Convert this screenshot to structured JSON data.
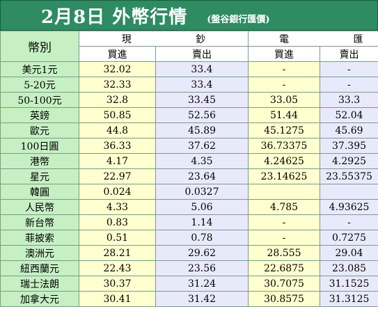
{
  "title": {
    "main": "2月8日 外幣行情",
    "sub": "(盤谷銀行匯價)"
  },
  "headers": {
    "currency": "幣別",
    "cash": "現 鈔",
    "telegraphic": "電 匯",
    "buy": "買進",
    "sell": "賣出"
  },
  "rows": [
    {
      "currency": "美元1元",
      "cash_buy": "32.02",
      "cash_sell": "33.4",
      "tt_buy": "-",
      "tt_sell": "-"
    },
    {
      "currency": "5-20元",
      "cash_buy": "32.33",
      "cash_sell": "33.4",
      "tt_buy": "-",
      "tt_sell": "-"
    },
    {
      "currency": "50-100元",
      "cash_buy": "32.8",
      "cash_sell": "33.45",
      "tt_buy": "33.05",
      "tt_sell": "33.3"
    },
    {
      "currency": "英鎊",
      "cash_buy": "50.85",
      "cash_sell": "52.56",
      "tt_buy": "51.44",
      "tt_sell": "52.04"
    },
    {
      "currency": "歐元",
      "cash_buy": "44.8",
      "cash_sell": "45.89",
      "tt_buy": "45.1275",
      "tt_sell": "45.69"
    },
    {
      "currency": "100日圓",
      "cash_buy": "36.33",
      "cash_sell": "37.62",
      "tt_buy": "36.73375",
      "tt_sell": "37.395"
    },
    {
      "currency": "港幣",
      "cash_buy": "4.17",
      "cash_sell": "4.35",
      "tt_buy": "4.24625",
      "tt_sell": "4.2925"
    },
    {
      "currency": "星元",
      "cash_buy": "22.97",
      "cash_sell": "23.64",
      "tt_buy": "23.14625",
      "tt_sell": "23.55375"
    },
    {
      "currency": "韓圓",
      "cash_buy": "0.024",
      "cash_sell": "0.0327",
      "tt_buy": "",
      "tt_sell": ""
    },
    {
      "currency": "人民幣",
      "cash_buy": "4.33",
      "cash_sell": "5.06",
      "tt_buy": "4.785",
      "tt_sell": "4.93625"
    },
    {
      "currency": "新台幣",
      "cash_buy": "0.83",
      "cash_sell": "1.14",
      "tt_buy": "-",
      "tt_sell": "-"
    },
    {
      "currency": "菲披索",
      "cash_buy": "0.51",
      "cash_sell": "0.78",
      "tt_buy": "-",
      "tt_sell": "0.7275"
    },
    {
      "currency": "澳洲元",
      "cash_buy": "28.21",
      "cash_sell": "29.62",
      "tt_buy": "28.555",
      "tt_sell": "29.04"
    },
    {
      "currency": "紐西蘭元",
      "cash_buy": "22.43",
      "cash_sell": "23.56",
      "tt_buy": "22.6875",
      "tt_sell": "23.085"
    },
    {
      "currency": "瑞士法朗",
      "cash_buy": "30.37",
      "cash_sell": "31.24",
      "tt_buy": "30.7075",
      "tt_sell": "31.1525"
    },
    {
      "currency": "加拿大元",
      "cash_buy": "30.41",
      "cash_sell": "31.42",
      "tt_buy": "30.8575",
      "tt_sell": "31.3125"
    }
  ]
}
